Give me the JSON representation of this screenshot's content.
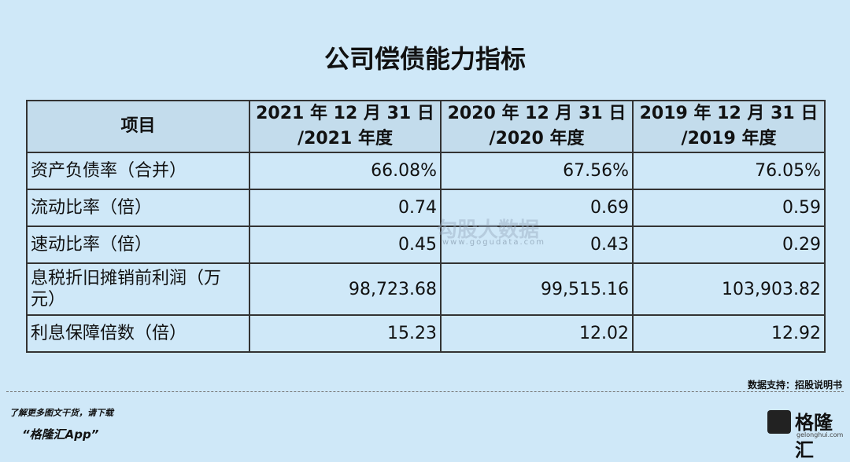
{
  "title": "公司偿债能力指标",
  "table": {
    "header": [
      [
        "项目"
      ],
      [
        "2021 年 12 月 31 日",
        "/2021 年度"
      ],
      [
        "2020 年 12 月 31 日",
        "/2020 年度"
      ],
      [
        "2019 年 12 月 31 日",
        "/2019 年度"
      ]
    ],
    "rows": [
      [
        "资产负债率（合并）",
        "66.08%",
        "67.56%",
        "76.05%"
      ],
      [
        "流动比率（倍）",
        "0.74",
        "0.69",
        "0.59"
      ],
      [
        "速动比率（倍）",
        "0.45",
        "0.43",
        "0.29"
      ],
      [
        "息税折旧摊销前利润（万元）",
        "98,723.68",
        "99,515.16",
        "103,903.82"
      ],
      [
        "利息保障倍数（倍）",
        "15.23",
        "12.02",
        "12.92"
      ]
    ]
  },
  "watermark": {
    "name": "勾股大数据",
    "url": "www.gogudata.com"
  },
  "source": "数据支持：招股说明书",
  "footer": {
    "prompt": "了解更多图文干货，请下载",
    "app": "“格隆汇App”",
    "logo_text": "格隆汇",
    "logo_url": "gelonghui.com"
  }
}
